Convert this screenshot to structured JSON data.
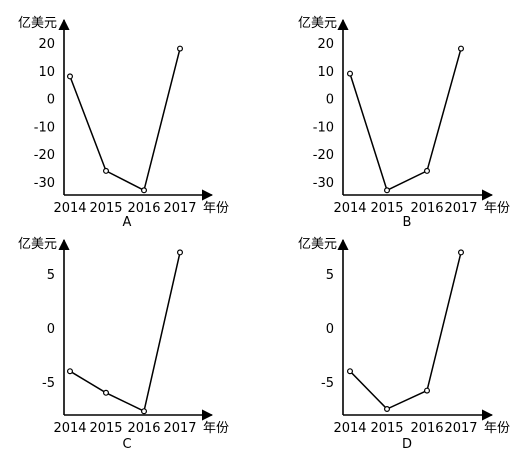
{
  "chart_data": [
    {
      "type": "line",
      "caption": "A",
      "ylabel": "亿美元",
      "xlabel": "年份",
      "x": [
        "2014",
        "2015",
        "2016",
        "2017"
      ],
      "values": [
        8,
        -26,
        -33,
        18
      ],
      "yticks": [
        "20",
        "10",
        "0",
        "-10",
        "-20",
        "-30"
      ]
    },
    {
      "type": "line",
      "caption": "B",
      "ylabel": "亿美元",
      "xlabel": "年份",
      "x": [
        "2014",
        "2015",
        "2016",
        "2017"
      ],
      "values": [
        9,
        -33,
        -26,
        18
      ],
      "yticks": [
        "20",
        "10",
        "0",
        "-10",
        "-20",
        "-30"
      ]
    },
    {
      "type": "line",
      "caption": "C",
      "ylabel": "亿美元",
      "xlabel": "年份",
      "x": [
        "2014",
        "2015",
        "2016",
        "2017"
      ],
      "values": [
        -4,
        -6,
        -7.7,
        7
      ],
      "yticks": [
        "5",
        "0",
        "-5"
      ]
    },
    {
      "type": "line",
      "caption": "D",
      "ylabel": "亿美元",
      "xlabel": "年份",
      "x": [
        "2014",
        "2015",
        "2016",
        "2017"
      ],
      "values": [
        -4,
        -7.5,
        -5.8,
        7
      ],
      "yticks": [
        "5",
        "0",
        "-5"
      ]
    }
  ]
}
